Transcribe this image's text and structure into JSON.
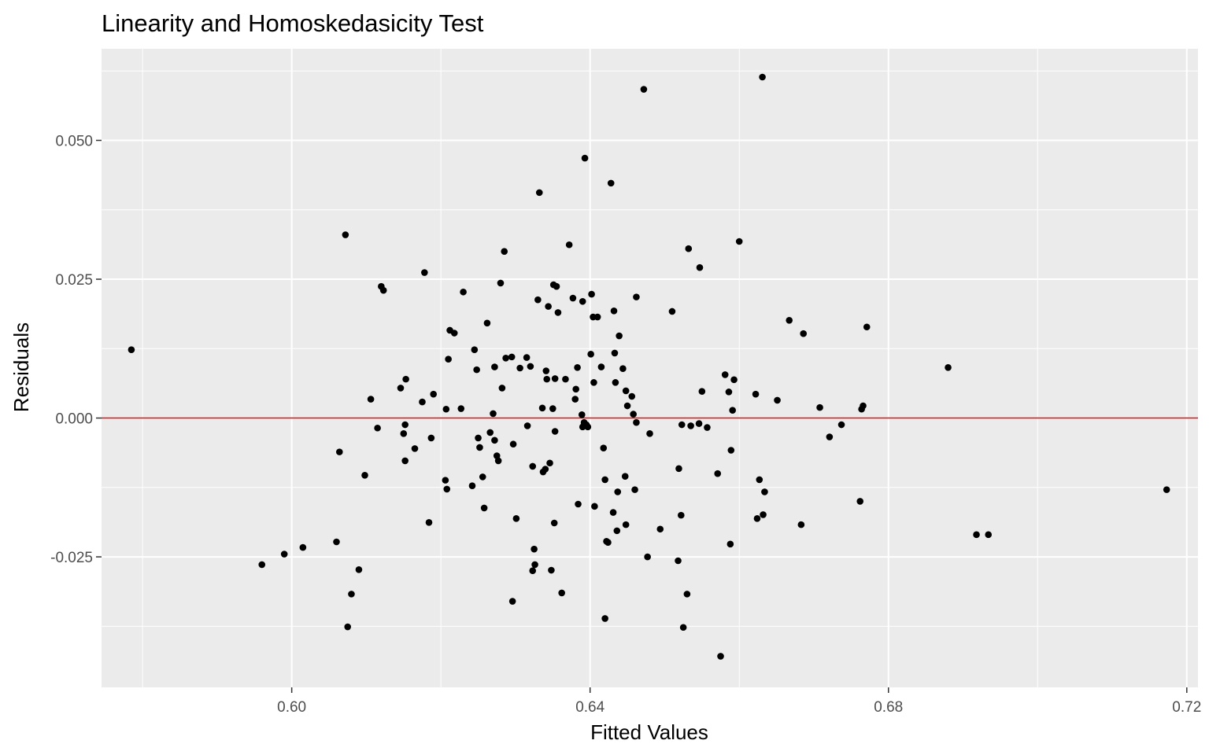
{
  "chart_data": {
    "type": "scatter",
    "title": "Linearity and Homoskedasicity Test",
    "xlabel": "Fitted Values",
    "ylabel": "Residuals",
    "xlim": [
      0.5745,
      0.7215
    ],
    "ylim": [
      -0.0485,
      0.0665
    ],
    "x_ticks": [
      0.6,
      0.64,
      0.68,
      0.72
    ],
    "x_tick_labels": [
      "0.60",
      "0.64",
      "0.68",
      "0.72"
    ],
    "y_ticks": [
      -0.025,
      0.0,
      0.025,
      0.05
    ],
    "y_tick_labels": [
      "-0.025",
      "0.000",
      "0.025",
      "0.050"
    ],
    "grid": true,
    "reference_line": {
      "y": 0,
      "color": "#ff0000"
    },
    "colors": {
      "panel": "#ebebeb",
      "grid": "#ffffff",
      "point": "#000000",
      "tick_label": "#4d4d4d"
    },
    "points": [
      {
        "x": 0.5785,
        "y": 0.0123
      },
      {
        "x": 0.596,
        "y": -0.0264
      },
      {
        "x": 0.599,
        "y": -0.0245
      },
      {
        "x": 0.6015,
        "y": -0.0233
      },
      {
        "x": 0.606,
        "y": -0.0223
      },
      {
        "x": 0.6064,
        "y": -0.0061
      },
      {
        "x": 0.6072,
        "y": 0.033
      },
      {
        "x": 0.6075,
        "y": -0.0376
      },
      {
        "x": 0.608,
        "y": -0.0317
      },
      {
        "x": 0.609,
        "y": -0.0273
      },
      {
        "x": 0.6098,
        "y": -0.0103
      },
      {
        "x": 0.6106,
        "y": 0.0034
      },
      {
        "x": 0.6115,
        "y": -0.0018
      },
      {
        "x": 0.612,
        "y": 0.0237
      },
      {
        "x": 0.6123,
        "y": 0.023
      },
      {
        "x": 0.6146,
        "y": 0.0054
      },
      {
        "x": 0.615,
        "y": -0.0028
      },
      {
        "x": 0.6152,
        "y": -0.0012
      },
      {
        "x": 0.6152,
        "y": -0.0077
      },
      {
        "x": 0.6153,
        "y": 0.007
      },
      {
        "x": 0.6165,
        "y": -0.0055
      },
      {
        "x": 0.6175,
        "y": 0.0029
      },
      {
        "x": 0.6178,
        "y": 0.0262
      },
      {
        "x": 0.6184,
        "y": -0.0188
      },
      {
        "x": 0.6187,
        "y": -0.0036
      },
      {
        "x": 0.619,
        "y": 0.0043
      },
      {
        "x": 0.6206,
        "y": -0.0112
      },
      {
        "x": 0.6207,
        "y": 0.0016
      },
      {
        "x": 0.6208,
        "y": -0.0128
      },
      {
        "x": 0.621,
        "y": 0.0106
      },
      {
        "x": 0.6212,
        "y": 0.0158
      },
      {
        "x": 0.6218,
        "y": 0.0153
      },
      {
        "x": 0.6227,
        "y": 0.0017
      },
      {
        "x": 0.623,
        "y": 0.0227
      },
      {
        "x": 0.6242,
        "y": -0.0122
      },
      {
        "x": 0.6245,
        "y": 0.0123
      },
      {
        "x": 0.6248,
        "y": 0.0087
      },
      {
        "x": 0.625,
        "y": -0.0036
      },
      {
        "x": 0.6252,
        "y": -0.0053
      },
      {
        "x": 0.6256,
        "y": -0.0106
      },
      {
        "x": 0.6258,
        "y": -0.0162
      },
      {
        "x": 0.6262,
        "y": 0.0171
      },
      {
        "x": 0.6266,
        "y": -0.0026
      },
      {
        "x": 0.627,
        "y": 0.0008
      },
      {
        "x": 0.6272,
        "y": 0.0092
      },
      {
        "x": 0.6272,
        "y": -0.004
      },
      {
        "x": 0.6275,
        "y": -0.0068
      },
      {
        "x": 0.6277,
        "y": -0.0077
      },
      {
        "x": 0.628,
        "y": 0.0243
      },
      {
        "x": 0.6282,
        "y": 0.0054
      },
      {
        "x": 0.6285,
        "y": 0.03
      },
      {
        "x": 0.6287,
        "y": 0.0108
      },
      {
        "x": 0.6295,
        "y": 0.011
      },
      {
        "x": 0.6296,
        "y": -0.033
      },
      {
        "x": 0.6297,
        "y": -0.0047
      },
      {
        "x": 0.6301,
        "y": -0.0181
      },
      {
        "x": 0.6306,
        "y": 0.009
      },
      {
        "x": 0.6315,
        "y": 0.0109
      },
      {
        "x": 0.6316,
        "y": -0.0014
      },
      {
        "x": 0.632,
        "y": 0.0093
      },
      {
        "x": 0.6323,
        "y": -0.0087
      },
      {
        "x": 0.6323,
        "y": -0.0275
      },
      {
        "x": 0.6325,
        "y": -0.0236
      },
      {
        "x": 0.6326,
        "y": -0.0264
      },
      {
        "x": 0.633,
        "y": 0.0213
      },
      {
        "x": 0.6332,
        "y": 0.0406
      },
      {
        "x": 0.6336,
        "y": 0.0018
      },
      {
        "x": 0.6337,
        "y": -0.0097
      },
      {
        "x": 0.634,
        "y": -0.0092
      },
      {
        "x": 0.6341,
        "y": 0.0085
      },
      {
        "x": 0.6342,
        "y": 0.007
      },
      {
        "x": 0.6344,
        "y": 0.0201
      },
      {
        "x": 0.6346,
        "y": -0.0081
      },
      {
        "x": 0.6348,
        "y": -0.0274
      },
      {
        "x": 0.635,
        "y": 0.0017
      },
      {
        "x": 0.6351,
        "y": 0.024
      },
      {
        "x": 0.6352,
        "y": -0.0189
      },
      {
        "x": 0.6353,
        "y": 0.0071
      },
      {
        "x": 0.6353,
        "y": -0.0024
      },
      {
        "x": 0.6355,
        "y": 0.0237
      },
      {
        "x": 0.6357,
        "y": 0.019
      },
      {
        "x": 0.6362,
        "y": -0.0315
      },
      {
        "x": 0.6367,
        "y": 0.007
      },
      {
        "x": 0.6372,
        "y": 0.0312
      },
      {
        "x": 0.6377,
        "y": 0.0216
      },
      {
        "x": 0.638,
        "y": 0.0034
      },
      {
        "x": 0.6381,
        "y": 0.0052
      },
      {
        "x": 0.6383,
        "y": 0.0091
      },
      {
        "x": 0.6384,
        "y": -0.0155
      },
      {
        "x": 0.6389,
        "y": 0.0006
      },
      {
        "x": 0.639,
        "y": -0.0016
      },
      {
        "x": 0.639,
        "y": 0.021
      },
      {
        "x": 0.6392,
        "y": -0.0008
      },
      {
        "x": 0.6393,
        "y": 0.0468
      },
      {
        "x": 0.6395,
        "y": -0.0012
      },
      {
        "x": 0.6397,
        "y": -0.0016
      },
      {
        "x": 0.6401,
        "y": 0.0115
      },
      {
        "x": 0.6402,
        "y": 0.0223
      },
      {
        "x": 0.6404,
        "y": 0.0182
      },
      {
        "x": 0.6405,
        "y": 0.0064
      },
      {
        "x": 0.6406,
        "y": -0.0159
      },
      {
        "x": 0.641,
        "y": 0.0182
      },
      {
        "x": 0.6415,
        "y": 0.0092
      },
      {
        "x": 0.6418,
        "y": -0.0054
      },
      {
        "x": 0.642,
        "y": -0.0111
      },
      {
        "x": 0.642,
        "y": -0.0361
      },
      {
        "x": 0.6422,
        "y": -0.0222
      },
      {
        "x": 0.6424,
        "y": -0.0224
      },
      {
        "x": 0.6428,
        "y": 0.0423
      },
      {
        "x": 0.6431,
        "y": -0.017
      },
      {
        "x": 0.6432,
        "y": 0.0193
      },
      {
        "x": 0.6433,
        "y": 0.0117
      },
      {
        "x": 0.6434,
        "y": 0.0064
      },
      {
        "x": 0.6436,
        "y": -0.0203
      },
      {
        "x": 0.6437,
        "y": -0.0133
      },
      {
        "x": 0.6439,
        "y": 0.0148
      },
      {
        "x": 0.6444,
        "y": 0.0089
      },
      {
        "x": 0.6447,
        "y": -0.0105
      },
      {
        "x": 0.6448,
        "y": -0.0192
      },
      {
        "x": 0.6448,
        "y": 0.0049
      },
      {
        "x": 0.645,
        "y": 0.0022
      },
      {
        "x": 0.6456,
        "y": 0.0039
      },
      {
        "x": 0.6458,
        "y": 0.0007
      },
      {
        "x": 0.646,
        "y": -0.0129
      },
      {
        "x": 0.6462,
        "y": -0.0008
      },
      {
        "x": 0.6462,
        "y": 0.0218
      },
      {
        "x": 0.6472,
        "y": 0.0592
      },
      {
        "x": 0.6477,
        "y": -0.025
      },
      {
        "x": 0.648,
        "y": -0.0028
      },
      {
        "x": 0.6494,
        "y": -0.02
      },
      {
        "x": 0.651,
        "y": 0.0192
      },
      {
        "x": 0.6518,
        "y": -0.0257
      },
      {
        "x": 0.6519,
        "y": -0.0091
      },
      {
        "x": 0.6522,
        "y": -0.0175
      },
      {
        "x": 0.6523,
        "y": -0.0012
      },
      {
        "x": 0.6525,
        "y": -0.0377
      },
      {
        "x": 0.653,
        "y": -0.0317
      },
      {
        "x": 0.6532,
        "y": 0.0305
      },
      {
        "x": 0.6535,
        "y": -0.0014
      },
      {
        "x": 0.6546,
        "y": -0.001
      },
      {
        "x": 0.6547,
        "y": 0.0271
      },
      {
        "x": 0.655,
        "y": 0.0048
      },
      {
        "x": 0.6557,
        "y": -0.0017
      },
      {
        "x": 0.6571,
        "y": -0.01
      },
      {
        "x": 0.6575,
        "y": -0.0429
      },
      {
        "x": 0.6581,
        "y": 0.0078
      },
      {
        "x": 0.6586,
        "y": 0.0047
      },
      {
        "x": 0.6588,
        "y": -0.0227
      },
      {
        "x": 0.6589,
        "y": -0.0058
      },
      {
        "x": 0.6591,
        "y": 0.0014
      },
      {
        "x": 0.6593,
        "y": 0.0069
      },
      {
        "x": 0.66,
        "y": 0.0318
      },
      {
        "x": 0.6622,
        "y": 0.0043
      },
      {
        "x": 0.6624,
        "y": -0.0181
      },
      {
        "x": 0.6627,
        "y": -0.0111
      },
      {
        "x": 0.6631,
        "y": 0.0614
      },
      {
        "x": 0.6632,
        "y": -0.0174
      },
      {
        "x": 0.6634,
        "y": -0.0133
      },
      {
        "x": 0.6651,
        "y": 0.0032
      },
      {
        "x": 0.6667,
        "y": 0.0176
      },
      {
        "x": 0.6683,
        "y": -0.0192
      },
      {
        "x": 0.6686,
        "y": 0.0152
      },
      {
        "x": 0.6708,
        "y": 0.0019
      },
      {
        "x": 0.6721,
        "y": -0.0034
      },
      {
        "x": 0.6737,
        "y": -0.0012
      },
      {
        "x": 0.6762,
        "y": -0.015
      },
      {
        "x": 0.6764,
        "y": 0.0016
      },
      {
        "x": 0.6766,
        "y": 0.0022
      },
      {
        "x": 0.6771,
        "y": 0.0164
      },
      {
        "x": 0.688,
        "y": 0.0091
      },
      {
        "x": 0.6918,
        "y": -0.021
      },
      {
        "x": 0.6934,
        "y": -0.021
      },
      {
        "x": 0.7173,
        "y": -0.0129
      }
    ]
  }
}
